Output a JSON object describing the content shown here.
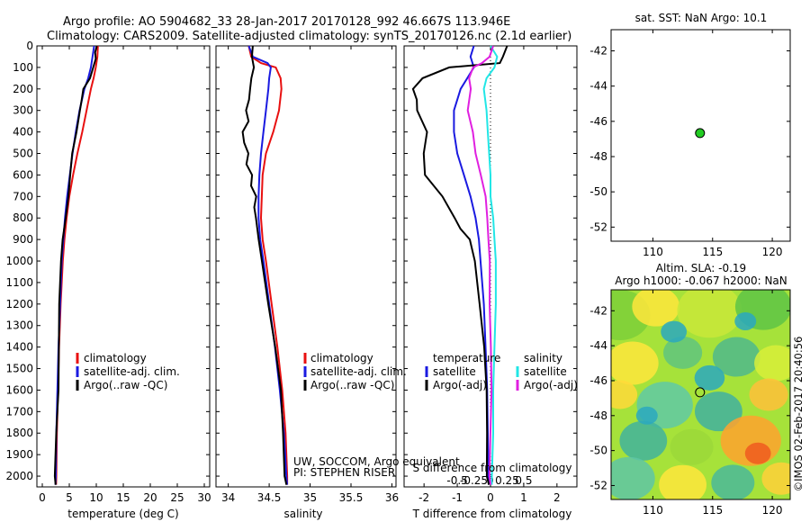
{
  "header": {
    "title_line1": "Argo profile: AO 5904682_33 28-Jan-2017 20170128_992 46.667S 113.946E",
    "title_line2": "Climatology: CARS2009. Satellite-adjusted climatology: synTS_20170126.nc (2.1d earlier)"
  },
  "colors": {
    "climatology": "#e81010",
    "satellite": "#1a1ae0",
    "argo": "#000000",
    "temp_sat_diff": "#1a1ae0",
    "temp_argo_diff": "#000000",
    "sal_sat_diff": "#22e6e6",
    "sal_argo_diff": "#e020e0",
    "ocean_green": "#22cc22"
  },
  "chart_data": [
    {
      "type": "line",
      "panel": "temperature",
      "xlabel": "temperature (deg C)",
      "ylabel": "",
      "xlim": [
        -1,
        31
      ],
      "ylim": [
        2050,
        0
      ],
      "xticks": [
        "0",
        "5",
        "10",
        "15",
        "20",
        "25",
        "30"
      ],
      "yticks": [
        "0",
        "100",
        "200",
        "300",
        "400",
        "500",
        "600",
        "700",
        "800",
        "900",
        "1000",
        "1100",
        "1200",
        "1300",
        "1400",
        "1500",
        "1600",
        "1700",
        "1800",
        "1900",
        "2000"
      ],
      "legend": [
        "climatology",
        "satellite-adj. clim.",
        "Argo(..raw -QC)"
      ],
      "series": [
        {
          "name": "climatology",
          "depth": [
            0,
            50,
            100,
            150,
            200,
            300,
            400,
            500,
            600,
            700,
            800,
            900,
            1000,
            1100,
            1200,
            1400,
            1600,
            1800,
            2000,
            2040
          ],
          "values": [
            10.3,
            10.2,
            9.9,
            9.5,
            9.0,
            8.2,
            7.4,
            6.5,
            5.7,
            5.0,
            4.5,
            4.1,
            3.8,
            3.6,
            3.4,
            3.1,
            2.9,
            2.7,
            2.6,
            2.55
          ]
        },
        {
          "name": "satellite-adj. clim.",
          "depth": [
            0,
            50,
            100,
            150,
            200,
            300,
            400,
            500,
            600,
            700,
            800,
            900,
            1000,
            1200,
            1400,
            1600,
            1800,
            2000,
            2040
          ],
          "values": [
            9.6,
            9.3,
            9.0,
            8.5,
            7.8,
            6.9,
            6.2,
            5.6,
            5.1,
            4.6,
            4.2,
            3.9,
            3.6,
            3.3,
            3.0,
            2.8,
            2.6,
            2.5,
            2.45
          ]
        },
        {
          "name": "Argo(..raw -QC)",
          "depth": [
            0,
            30,
            60,
            100,
            150,
            200,
            250,
            300,
            400,
            500,
            600,
            700,
            800,
            900,
            1000,
            1200,
            1400,
            1600,
            1800,
            2000,
            2040
          ],
          "values": [
            10.1,
            10.0,
            9.9,
            9.7,
            9.1,
            7.8,
            7.4,
            7.0,
            6.4,
            5.6,
            5.0,
            4.5,
            4.2,
            3.9,
            3.6,
            3.3,
            3.0,
            2.8,
            2.6,
            2.5,
            2.45
          ]
        }
      ]
    },
    {
      "type": "line",
      "panel": "salinity",
      "xlabel": "salinity",
      "xlim": [
        33.85,
        36.05
      ],
      "ylim": [
        2050,
        0
      ],
      "xticks": [
        "34",
        "34.5",
        "35",
        "35.5",
        "36"
      ],
      "legend": [
        "climatology",
        "satellite-adj. clim.",
        "Argo(..raw -QC)"
      ],
      "annotation1": "UW, SOCCOM, Argo equivalent",
      "annotation2": "PI: STEPHEN RISER",
      "series": [
        {
          "name": "climatology",
          "depth": [
            0,
            50,
            80,
            100,
            150,
            200,
            300,
            400,
            500,
            600,
            700,
            800,
            900,
            1000,
            1200,
            1400,
            1600,
            1800,
            2000,
            2040
          ],
          "values": [
            34.25,
            34.28,
            34.4,
            34.58,
            34.64,
            34.65,
            34.62,
            34.55,
            34.46,
            34.42,
            34.41,
            34.4,
            34.42,
            34.46,
            34.53,
            34.6,
            34.66,
            34.7,
            34.72,
            34.72
          ]
        },
        {
          "name": "satellite-adj. clim.",
          "depth": [
            0,
            50,
            80,
            100,
            150,
            200,
            300,
            400,
            500,
            600,
            700,
            800,
            900,
            1000,
            1200,
            1400,
            1600,
            1800,
            2000,
            2040
          ],
          "values": [
            34.25,
            34.3,
            34.48,
            34.52,
            34.5,
            34.49,
            34.46,
            34.43,
            34.4,
            34.38,
            34.37,
            34.37,
            34.39,
            34.43,
            34.5,
            34.57,
            34.63,
            34.68,
            34.71,
            34.72
          ]
        },
        {
          "name": "Argo(..raw -QC)",
          "depth": [
            0,
            50,
            100,
            150,
            200,
            250,
            300,
            350,
            400,
            450,
            500,
            550,
            600,
            650,
            700,
            750,
            800,
            900,
            1000,
            1200,
            1400,
            1600,
            1800,
            2000,
            2040
          ],
          "values": [
            34.3,
            34.3,
            34.33,
            34.3,
            34.28,
            34.26,
            34.22,
            34.25,
            34.18,
            34.2,
            34.25,
            34.22,
            34.28,
            34.26,
            34.32,
            34.3,
            34.33,
            34.38,
            34.42,
            34.5,
            34.57,
            34.63,
            34.67,
            34.7,
            34.71
          ]
        }
      ]
    },
    {
      "type": "line",
      "panel": "differences",
      "xlabel": "T difference from climatology",
      "xlabel_top": "S difference from climatology",
      "xlim": [
        -2.6,
        2.6
      ],
      "ylim": [
        2050,
        0
      ],
      "xticks": [
        "-2",
        "-1",
        "0",
        "1",
        "2"
      ],
      "xticks_top": [
        "-0.5",
        "-0.25",
        "0",
        "0.25",
        "0.5"
      ],
      "legend_temp_title": "temperature",
      "legend_sal_title": "salinity",
      "legend_temp": [
        "satellite",
        "Argo(-adj)"
      ],
      "legend_sal": [
        "satellite",
        "Argo(-adj)"
      ],
      "series": [
        {
          "name": "temperature satellite",
          "depth": [
            0,
            50,
            100,
            150,
            200,
            300,
            400,
            500,
            600,
            700,
            800,
            900,
            1000,
            1200,
            1400,
            1600,
            1800,
            2000,
            2040
          ],
          "values": [
            -0.5,
            -0.6,
            -0.5,
            -0.7,
            -0.9,
            -1.1,
            -1.1,
            -1.0,
            -0.8,
            -0.6,
            -0.45,
            -0.35,
            -0.3,
            -0.2,
            -0.15,
            -0.1,
            -0.08,
            -0.06,
            -0.05
          ]
        },
        {
          "name": "temperature Argo(-adj)",
          "depth": [
            0,
            50,
            80,
            100,
            150,
            200,
            250,
            300,
            400,
            500,
            600,
            700,
            800,
            850,
            900,
            1000,
            1200,
            1400,
            1600,
            1800,
            2000,
            2040
          ],
          "values": [
            0.5,
            0.4,
            0.3,
            -1.2,
            -2.0,
            -2.3,
            -2.2,
            -2.2,
            -1.9,
            -2.0,
            -2.0,
            -1.5,
            -1.1,
            -0.9,
            -0.6,
            -0.45,
            -0.3,
            -0.2,
            -0.15,
            -0.1,
            -0.08,
            -0.05
          ]
        },
        {
          "name": "salinity satellite",
          "depth": [
            0,
            50,
            100,
            150,
            200,
            300,
            400,
            500,
            600,
            700,
            800,
            900,
            1000,
            1200,
            1400,
            1600,
            1800,
            2000,
            2040
          ],
          "values": [
            0.0,
            0.05,
            0.03,
            -0.03,
            -0.05,
            -0.03,
            -0.02,
            -0.01,
            0.0,
            0.0,
            0.02,
            0.03,
            0.04,
            0.04,
            0.03,
            0.02,
            0.02,
            0.01,
            0.01
          ]
        },
        {
          "name": "salinity Argo(-adj)",
          "depth": [
            0,
            50,
            80,
            100,
            150,
            200,
            300,
            400,
            500,
            600,
            700,
            800,
            900,
            1000,
            1200,
            1400,
            1600,
            1800,
            2000,
            2040
          ],
          "values": [
            0.02,
            0.0,
            -0.06,
            -0.12,
            -0.15,
            -0.14,
            -0.17,
            -0.13,
            -0.11,
            -0.08,
            -0.05,
            -0.03,
            -0.01,
            0.0,
            0.0,
            0.0,
            0.0,
            0.0,
            0.0,
            0.0
          ]
        }
      ]
    },
    {
      "type": "scatter",
      "panel": "location",
      "title": "sat. SST: NaN Argo: 10.1",
      "xlim": [
        106.5,
        121.5
      ],
      "ylim": [
        -52.8,
        -40.8
      ],
      "xticks": [
        "110",
        "115",
        "120"
      ],
      "yticks": [
        "-42",
        "-44",
        "-46",
        "-48",
        "-50",
        "-52"
      ],
      "points": [
        {
          "lon": 113.946,
          "lat": -46.667
        }
      ]
    },
    {
      "type": "heatmap",
      "panel": "altimetry",
      "title_line1": "Altim. SLA: -0.19",
      "title_line2": "Argo h1000: -0.067 h2000: NaN",
      "xlim": [
        106.5,
        121.5
      ],
      "ylim": [
        -52.8,
        -40.8
      ],
      "xticks": [
        "110",
        "115",
        "120"
      ],
      "yticks": [
        "-42",
        "-44",
        "-46",
        "-48",
        "-50",
        "-52"
      ],
      "point": {
        "lon": 113.946,
        "lat": -46.667
      },
      "side_label": "©IMOS 02-Feb-2017 20:40:56"
    }
  ]
}
